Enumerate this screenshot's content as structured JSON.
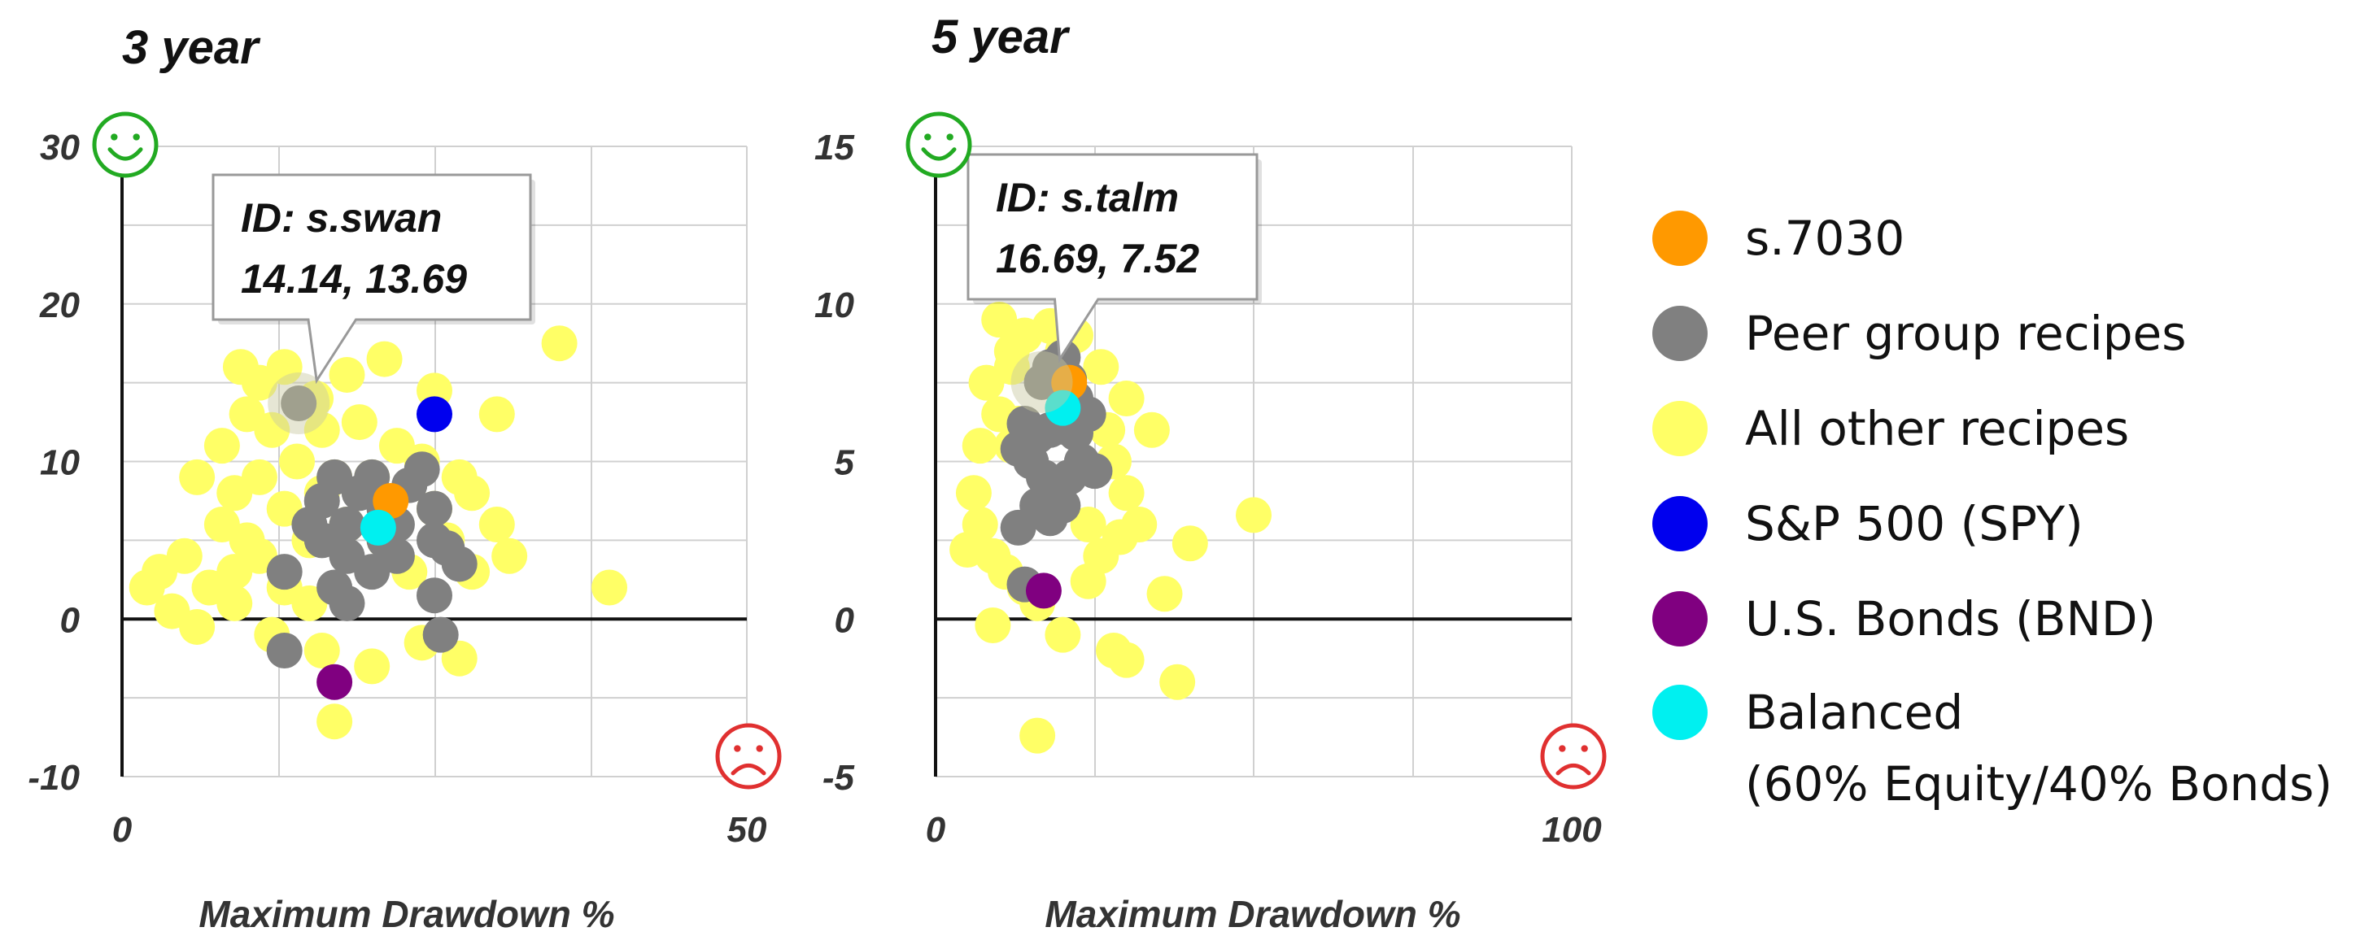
{
  "chart_data": [
    {
      "type": "scatter",
      "title": "3 year",
      "xlabel": "Maximum Drawdown %",
      "ylabel": "",
      "xlim": [
        0,
        50
      ],
      "ylim": [
        -10,
        30
      ],
      "x_ticks": [
        "0",
        "50"
      ],
      "y_ticks": [
        "30",
        "20",
        "10",
        "0",
        "-10"
      ],
      "grid": true,
      "tooltip": {
        "line1": "ID: s.swan",
        "line2": "14.14, 13.69",
        "x": 14.14,
        "y": 13.69
      },
      "series": [
        {
          "name": "All other recipes",
          "color": "#ffff66",
          "points": [
            [
              9.5,
              16
            ],
            [
              11,
              15
            ],
            [
              13,
              16
            ],
            [
              15.5,
              14
            ],
            [
              18,
              15.5
            ],
            [
              21,
              16.5
            ],
            [
              25,
              14.5
            ],
            [
              30,
              13
            ],
            [
              35,
              17.5
            ],
            [
              10,
              13
            ],
            [
              12,
              12
            ],
            [
              16,
              12
            ],
            [
              19,
              12.5
            ],
            [
              22,
              11
            ],
            [
              27,
              9
            ],
            [
              28,
              8
            ],
            [
              30,
              6
            ],
            [
              31,
              4
            ],
            [
              8,
              11
            ],
            [
              6,
              9
            ],
            [
              9,
              8
            ],
            [
              11,
              9
            ],
            [
              13,
              7
            ],
            [
              15,
              5
            ],
            [
              18,
              6
            ],
            [
              21,
              5
            ],
            [
              23,
              3
            ],
            [
              26,
              5
            ],
            [
              3,
              3
            ],
            [
              5,
              4
            ],
            [
              7,
              2
            ],
            [
              9,
              3
            ],
            [
              11,
              4
            ],
            [
              13,
              2
            ],
            [
              15,
              1
            ],
            [
              4,
              0.5
            ],
            [
              6,
              -0.5
            ],
            [
              9,
              1
            ],
            [
              12,
              -1
            ],
            [
              16,
              -2
            ],
            [
              20,
              -3
            ],
            [
              24,
              -1.5
            ],
            [
              27,
              -2.5
            ],
            [
              17,
              -6.5
            ],
            [
              39,
              2
            ],
            [
              8,
              6
            ],
            [
              10,
              5
            ],
            [
              14,
              10
            ],
            [
              17,
              9
            ],
            [
              24,
              10
            ],
            [
              25,
              7
            ],
            [
              28,
              3
            ],
            [
              2,
              2
            ],
            [
              20,
              9
            ],
            [
              16,
              8
            ]
          ]
        },
        {
          "name": "Peer group recipes",
          "color": "#808080",
          "points": [
            [
              14.14,
              13.69
            ],
            [
              16,
              7.5
            ],
            [
              17,
              9
            ],
            [
              18,
              6
            ],
            [
              19,
              8
            ],
            [
              20,
              9
            ],
            [
              21,
              7
            ],
            [
              22,
              6
            ],
            [
              23,
              8.5
            ],
            [
              24,
              9.5
            ],
            [
              25,
              7
            ],
            [
              26,
              4.5
            ],
            [
              27,
              3.5
            ],
            [
              16,
              5
            ],
            [
              15,
              6
            ],
            [
              18,
              4
            ],
            [
              20,
              3
            ],
            [
              21,
              5
            ],
            [
              22,
              4
            ],
            [
              25,
              5
            ],
            [
              25,
              1.5
            ],
            [
              25.5,
              -1
            ],
            [
              17,
              2
            ],
            [
              18,
              1
            ],
            [
              13,
              3
            ],
            [
              13,
              -2
            ]
          ]
        },
        {
          "name": "s.7030",
          "color": "#ff9900",
          "points": [
            [
              21.5,
              7.5
            ]
          ]
        },
        {
          "name": "S&P 500 (SPY)",
          "color": "#0000ee",
          "points": [
            [
              25,
              13
            ]
          ]
        },
        {
          "name": "U.S. Bonds (BND)",
          "color": "#800080",
          "points": [
            [
              17,
              -4
            ]
          ]
        },
        {
          "name": "Balanced\n(60% Equity/40% Bonds)",
          "color": "#00f0f0",
          "points": [
            [
              20.5,
              5.8
            ]
          ]
        }
      ]
    },
    {
      "type": "scatter",
      "title": "5 year",
      "xlabel": "Maximum Drawdown %",
      "ylabel": "",
      "xlim": [
        0,
        100
      ],
      "ylim": [
        -5,
        15
      ],
      "x_ticks": [
        "0",
        "100"
      ],
      "y_ticks": [
        "15",
        "10",
        "5",
        "0",
        "-5"
      ],
      "grid": true,
      "tooltip": {
        "line1": "ID: s.talm",
        "line2": "16.69, 7.52",
        "x": 16.69,
        "y": 7.52
      },
      "series": [
        {
          "name": "All other recipes",
          "color": "#ffff66",
          "points": [
            [
              10,
              9.5
            ],
            [
              12,
              8.5
            ],
            [
              14,
              9
            ],
            [
              18,
              9.3
            ],
            [
              22,
              9
            ],
            [
              26,
              8
            ],
            [
              30,
              7
            ],
            [
              34,
              6
            ],
            [
              8,
              7.5
            ],
            [
              10,
              6.5
            ],
            [
              12,
              5.5
            ],
            [
              28,
              5
            ],
            [
              30,
              4
            ],
            [
              32,
              3
            ],
            [
              6,
              4
            ],
            [
              7,
              3
            ],
            [
              9,
              2
            ],
            [
              11,
              1.5
            ],
            [
              14,
              1
            ],
            [
              16,
              0.5
            ],
            [
              20,
              -0.5
            ],
            [
              9,
              -0.2
            ],
            [
              28,
              -1
            ],
            [
              30,
              -1.3
            ],
            [
              38,
              -2
            ],
            [
              16,
              -3.7
            ],
            [
              40,
              2.4
            ],
            [
              50,
              3.3
            ],
            [
              36,
              0.8
            ],
            [
              26,
              2
            ],
            [
              24,
              1.2
            ],
            [
              5,
              2.2
            ],
            [
              12,
              8
            ],
            [
              20,
              8.5
            ],
            [
              13,
              6.2
            ],
            [
              27,
              6
            ],
            [
              29,
              2.6
            ],
            [
              7,
              5.5
            ],
            [
              24,
              3
            ]
          ]
        },
        {
          "name": "Peer group recipes",
          "color": "#808080",
          "points": [
            [
              16.69,
              7.52
            ],
            [
              18,
              8
            ],
            [
              20,
              8.3
            ],
            [
              21,
              7.6
            ],
            [
              22,
              7
            ],
            [
              14,
              6.2
            ],
            [
              16,
              5.8
            ],
            [
              18,
              6
            ],
            [
              20,
              6.1
            ],
            [
              22,
              5.9
            ],
            [
              24,
              6.5
            ],
            [
              13,
              5.4
            ],
            [
              15,
              5
            ],
            [
              17,
              4.5
            ],
            [
              19,
              4
            ],
            [
              21,
              4.5
            ],
            [
              23,
              5
            ],
            [
              25,
              4.7
            ],
            [
              16,
              3.6
            ],
            [
              18,
              3.2
            ],
            [
              20,
              3.6
            ],
            [
              13,
              2.9
            ],
            [
              14,
              1.1
            ]
          ]
        },
        {
          "name": "s.7030",
          "color": "#ff9900",
          "points": [
            [
              21,
              7.5
            ]
          ]
        },
        {
          "name": "U.S. Bonds (BND)",
          "color": "#800080",
          "points": [
            [
              17,
              0.9
            ]
          ]
        },
        {
          "name": "Balanced\n(60% Equity/40% Bonds)",
          "color": "#00f0f0",
          "points": [
            [
              20,
              6.7
            ]
          ]
        }
      ]
    }
  ],
  "legend": [
    {
      "label": "s.7030",
      "color": "#ff9900"
    },
    {
      "label": "Peer group recipes",
      "color": "#808080"
    },
    {
      "label": "All other recipes",
      "color": "#ffff66"
    },
    {
      "label": "S&P 500 (SPY)",
      "color": "#0000ee"
    },
    {
      "label": "U.S. Bonds (BND)",
      "color": "#800080"
    },
    {
      "label": "Balanced",
      "label2": "(60% Equity/40% Bonds)",
      "color": "#00f0f0"
    }
  ],
  "icons": {
    "top": "smiley-face-icon",
    "bottom": "frowny-face-icon"
  },
  "colors": {
    "smiley": "#22aa22",
    "frowny": "#e03030",
    "grid": "#d0d0d0",
    "axis": "#111111"
  }
}
